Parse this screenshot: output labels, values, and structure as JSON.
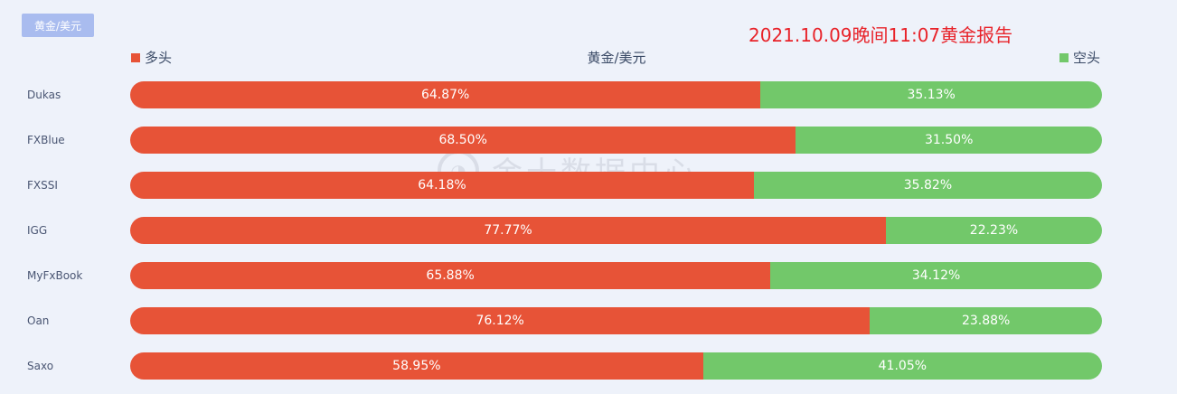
{
  "tag": "黄金/美元",
  "report": "2021.10.09晚间11:07黄金报告",
  "watermark": "金十数据中心",
  "colors": {
    "long": "#e75337",
    "short": "#72c86a"
  },
  "chart_data": {
    "type": "bar",
    "stacked": true,
    "orientation": "horizontal",
    "title": "黄金/美元",
    "legend": {
      "long": "多头",
      "short": "空头"
    },
    "categories": [
      "Dukas",
      "FXBlue",
      "FXSSI",
      "IGG",
      "MyFxBook",
      "Oan",
      "Saxo"
    ],
    "series": [
      {
        "name": "多头",
        "values": [
          64.87,
          68.5,
          64.18,
          77.77,
          65.88,
          76.12,
          58.95
        ]
      },
      {
        "name": "空头",
        "values": [
          35.13,
          31.5,
          35.82,
          22.23,
          34.12,
          23.88,
          41.05
        ]
      }
    ],
    "labels": {
      "long": [
        "64.87%",
        "68.50%",
        "64.18%",
        "77.77%",
        "65.88%",
        "76.12%",
        "58.95%"
      ],
      "short": [
        "35.13%",
        "31.50%",
        "35.82%",
        "22.23%",
        "34.12%",
        "23.88%",
        "41.05%"
      ]
    },
    "xlim": [
      0,
      100
    ]
  }
}
